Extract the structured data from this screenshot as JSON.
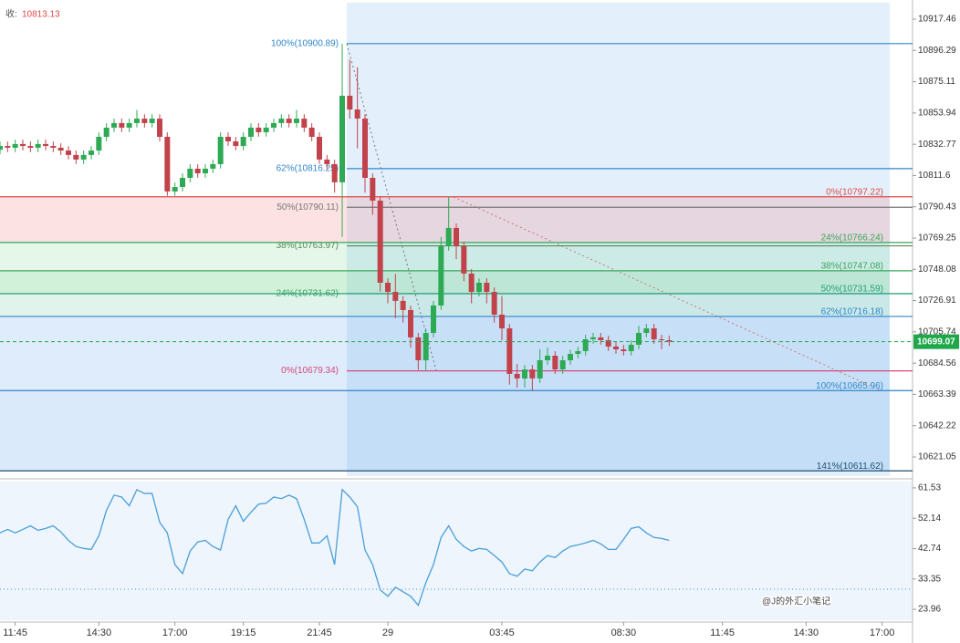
{
  "chart_data": [
    {
      "type": "candlestick",
      "close_label": "收:",
      "close_value": "10813.13",
      "watermark": "@J的外汇小笔记",
      "last_price": 10699.07,
      "last_price_color": "#1ea84a",
      "up_color": "#2eaa55",
      "down_color": "#c2424b",
      "xlim": [
        0,
        120
      ],
      "ylim": [
        10608.08,
        10930.43
      ],
      "yticks": [
        10917.46,
        10896.29,
        10875.11,
        10853.94,
        10832.77,
        10811.6,
        10790.43,
        10769.25,
        10748.08,
        10726.91,
        10705.74,
        10684.56,
        10663.39,
        10642.22,
        10621.05
      ],
      "open": [
        10829.0,
        10831.6,
        10830.4,
        10832.9,
        10831.6,
        10830.4,
        10832.9,
        10831.6,
        10830.4,
        10828.5,
        10825.5,
        10822.4,
        10825.5,
        10828.5,
        10837.8,
        10844.0,
        10847.1,
        10844.0,
        10847.1,
        10850.1,
        10847.1,
        10850.1,
        10837.8,
        10800.8,
        10803.8,
        10810.0,
        10816.2,
        10813.1,
        10816.2,
        10819.3,
        10837.8,
        10834.7,
        10831.6,
        10837.8,
        10844.0,
        10840.9,
        10844.0,
        10847.1,
        10850.1,
        10847.1,
        10850.1,
        10844.0,
        10837.8,
        10822.4,
        10819.3,
        10807.0,
        10865.6,
        10856.3,
        10850.1,
        10810.0,
        10794.6,
        10739.0,
        10732.8,
        10726.7,
        10720.5,
        10702.0,
        10686.5,
        10705.0,
        10723.6,
        10763.7,
        10776.1,
        10763.7,
        10745.2,
        10732.8,
        10739.0,
        10732.8,
        10717.4,
        10708.1,
        10677.3,
        10674.2,
        10680.3,
        10674.2,
        10686.5,
        10689.6,
        10680.3,
        10686.5,
        10690.8,
        10692.7,
        10700.7,
        10702.0,
        10700.1,
        10695.8,
        10693.9,
        10692.7,
        10697.0,
        10705.0,
        10708.1,
        10700.7,
        10700.1
      ],
      "high": [
        10834.6,
        10834.6,
        10835.9,
        10835.9,
        10834.6,
        10835.9,
        10835.9,
        10834.6,
        10833.4,
        10831.5,
        10828.5,
        10828.5,
        10831.5,
        10840.8,
        10847.0,
        10850.1,
        10850.1,
        10850.1,
        10856.0,
        10853.1,
        10853.1,
        10853.1,
        10840.8,
        10806.8,
        10813.0,
        10819.2,
        10819.2,
        10819.2,
        10822.3,
        10840.8,
        10840.8,
        10837.7,
        10840.8,
        10847.0,
        10847.0,
        10847.0,
        10850.1,
        10853.1,
        10853.1,
        10856.0,
        10853.1,
        10847.0,
        10840.8,
        10825.4,
        10822.3,
        10900.9,
        10890.0,
        10885.0,
        10853.1,
        10813.0,
        10797.6,
        10742.0,
        10745.0,
        10730.0,
        10723.5,
        10705.0,
        10708.0,
        10726.6,
        10770.0,
        10797.2,
        10779.1,
        10766.7,
        10748.2,
        10742.0,
        10742.0,
        10735.8,
        10730.0,
        10711.1,
        10684.0,
        10683.3,
        10683.3,
        10694.0,
        10695.0,
        10692.6,
        10689.5,
        10693.8,
        10695.7,
        10703.7,
        10705.0,
        10705.0,
        10703.1,
        10698.8,
        10696.9,
        10700.0,
        10710.0,
        10711.1,
        10711.1,
        10703.7,
        10703.1
      ],
      "low": [
        10826.0,
        10827.4,
        10827.4,
        10828.6,
        10827.4,
        10827.4,
        10828.6,
        10827.4,
        10825.5,
        10822.5,
        10819.4,
        10819.4,
        10822.5,
        10825.5,
        10834.8,
        10841.0,
        10841.0,
        10841.0,
        10844.1,
        10844.1,
        10844.1,
        10834.8,
        10797.8,
        10797.8,
        10800.8,
        10807.0,
        10810.1,
        10810.1,
        10813.2,
        10816.3,
        10831.7,
        10828.6,
        10828.6,
        10834.8,
        10837.9,
        10837.9,
        10841.0,
        10844.1,
        10844.1,
        10844.1,
        10841.0,
        10834.8,
        10819.4,
        10816.3,
        10800.0,
        10770.0,
        10850.0,
        10830.0,
        10800.0,
        10785.0,
        10733.0,
        10725.0,
        10715.0,
        10712.0,
        10695.0,
        10680.0,
        10679.3,
        10702.0,
        10720.6,
        10760.7,
        10755.0,
        10740.0,
        10725.0,
        10729.8,
        10725.0,
        10712.0,
        10700.0,
        10670.0,
        10668.0,
        10668.0,
        10666.0,
        10671.2,
        10683.5,
        10677.3,
        10677.3,
        10683.5,
        10687.8,
        10689.7,
        10697.7,
        10697.1,
        10692.8,
        10690.9,
        10689.7,
        10689.7,
        10694.0,
        10702.0,
        10697.7,
        10694.0,
        10696.1
      ],
      "close": [
        10831.6,
        10830.4,
        10832.9,
        10831.6,
        10830.4,
        10832.9,
        10831.6,
        10830.4,
        10828.5,
        10825.5,
        10822.4,
        10825.5,
        10828.5,
        10837.8,
        10844.0,
        10847.1,
        10844.0,
        10847.1,
        10850.1,
        10847.1,
        10850.1,
        10837.8,
        10800.8,
        10803.8,
        10810.0,
        10816.2,
        10813.1,
        10816.2,
        10819.3,
        10837.8,
        10834.7,
        10831.6,
        10837.8,
        10844.0,
        10840.9,
        10844.0,
        10847.1,
        10850.1,
        10847.1,
        10850.1,
        10844.0,
        10837.8,
        10822.4,
        10819.3,
        10807.0,
        10865.6,
        10856.3,
        10850.1,
        10810.0,
        10794.6,
        10739.0,
        10732.8,
        10726.7,
        10720.5,
        10702.0,
        10686.5,
        10705.0,
        10723.6,
        10763.7,
        10776.1,
        10763.7,
        10745.2,
        10732.8,
        10739.0,
        10732.8,
        10717.4,
        10708.1,
        10677.3,
        10674.2,
        10680.3,
        10674.2,
        10686.5,
        10689.6,
        10680.3,
        10686.5,
        10690.8,
        10692.7,
        10700.7,
        10702.0,
        10700.1,
        10695.8,
        10693.9,
        10692.7,
        10697.0,
        10705.0,
        10708.1,
        10700.7,
        10700.1,
        10699.1
      ],
      "fib_sets": [
        {
          "levels": [
            10900.89,
            10816.25,
            10790.11,
            10763.97,
            10731.62,
            10679.34
          ],
          "labels": [
            "100%(10900.89)",
            "62%(10816.25)",
            "50%(10790.11)",
            "38%(10763.97)",
            "24%(10731.62)",
            "0%(10679.34)"
          ],
          "colors": [
            "#2f86c9",
            "#2f86c9",
            "#777777",
            "#5a8a5a",
            "#3aa65a",
            "#d9487a"
          ]
        },
        {
          "levels": [
            10797.22,
            10766.24,
            10747.08,
            10731.59,
            10716.18,
            10665.96,
            10611.62
          ],
          "labels": [
            "0%(10797.22)",
            "24%(10766.24)",
            "38%(10747.08)",
            "50%(10731.59)",
            "62%(10716.18)",
            "100%(10665.96)",
            "141%(10611.62)"
          ],
          "colors": [
            "#e04848",
            "#3aa65a",
            "#3aa65a",
            "#26a07a",
            "#2f86c9",
            "#2f86c9",
            "#1f4e6e"
          ],
          "band_colors": [
            "rgba(242,110,110,0.2)",
            "rgba(90,205,120,0.16)",
            "rgba(90,205,120,0.28)",
            "rgba(120,205,170,0.22)",
            "rgba(90,160,235,0.2)",
            "rgba(90,160,235,0.22)"
          ]
        }
      ]
    },
    {
      "type": "line",
      "color": "#4a9fd8",
      "xlim": [
        0,
        120
      ],
      "ylim": [
        20.6,
        63.49
      ],
      "yticks": [
        61.53,
        52.14,
        42.74,
        33.35,
        23.96
      ],
      "reference_line": 30.2,
      "xticks": [
        {
          "value": 2,
          "label": "11:45"
        },
        {
          "value": 13,
          "label": "14:30"
        },
        {
          "value": 23,
          "label": "17:00"
        },
        {
          "value": 32,
          "label": "19:15"
        },
        {
          "value": 42,
          "label": "21:45"
        },
        {
          "value": 51,
          "label": "29"
        },
        {
          "value": 66,
          "label": "03:45"
        },
        {
          "value": 82,
          "label": "08:30"
        },
        {
          "value": 95,
          "label": "11:45"
        },
        {
          "value": 106,
          "label": "14:30"
        },
        {
          "value": 116,
          "label": "17:00"
        }
      ],
      "values": [
        47.6,
        48.7,
        47.6,
        48.7,
        49.8,
        48.4,
        49.0,
        49.8,
        47.9,
        45.3,
        43.4,
        42.8,
        42.5,
        46.7,
        54.6,
        59.3,
        58.7,
        56.0,
        61.0,
        59.8,
        59.8,
        50.9,
        47.6,
        37.8,
        35.0,
        42.0,
        44.8,
        45.3,
        43.4,
        42.3,
        51.8,
        56.0,
        51.2,
        54.0,
        56.5,
        56.8,
        58.7,
        58.2,
        59.3,
        58.2,
        51.8,
        44.5,
        44.5,
        46.7,
        37.8,
        61.0,
        58.7,
        55.7,
        42.3,
        37.8,
        30.0,
        28.0,
        30.8,
        29.4,
        28.0,
        25.2,
        32.2,
        37.8,
        46.2,
        49.8,
        45.6,
        43.4,
        42.0,
        42.8,
        42.5,
        40.6,
        38.6,
        35.0,
        34.2,
        36.4,
        35.9,
        38.6,
        40.6,
        40.0,
        42.0,
        43.4,
        43.9,
        44.5,
        45.3,
        44.2,
        42.5,
        42.5,
        45.6,
        49.0,
        49.5,
        47.6,
        46.2,
        45.9,
        45.3
      ]
    }
  ]
}
